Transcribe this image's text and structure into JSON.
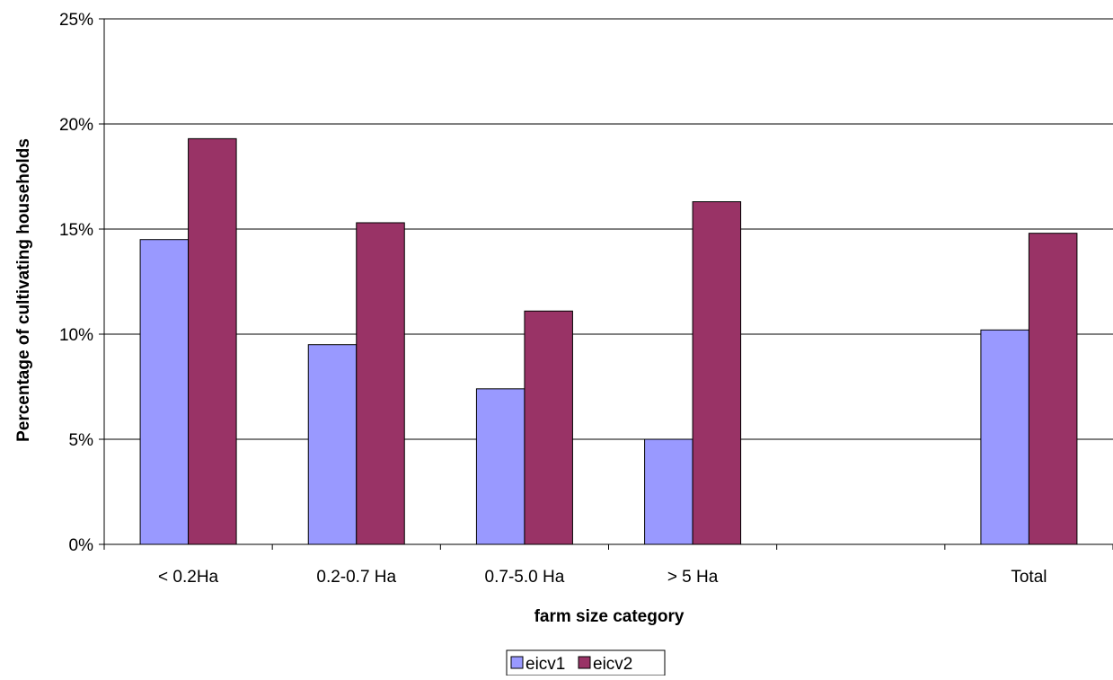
{
  "chart_data": {
    "type": "bar",
    "title": "",
    "xlabel": "farm size category",
    "ylabel": "Percentage of cultivating households",
    "categories": [
      "< 0.2Ha",
      "0.2-0.7 Ha",
      "0.7-5.0 Ha",
      "> 5 Ha",
      "",
      "Total"
    ],
    "series": [
      {
        "name": "eicv1",
        "color": "#9999ff",
        "values": [
          14.5,
          9.5,
          7.4,
          5.0,
          null,
          10.2
        ]
      },
      {
        "name": "eicv2",
        "color": "#993366",
        "values": [
          19.3,
          15.3,
          11.1,
          16.3,
          null,
          14.8
        ]
      }
    ],
    "ylim": [
      0,
      25
    ],
    "yticks": [
      0,
      5,
      10,
      15,
      20,
      25
    ],
    "ytick_labels": [
      "0%",
      "5%",
      "10%",
      "15%",
      "20%",
      "25%"
    ],
    "grid": true,
    "legend_position": "bottom"
  }
}
